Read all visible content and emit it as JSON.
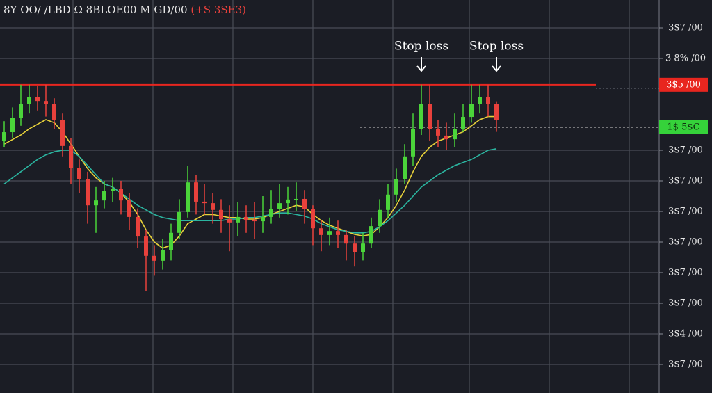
{
  "chart_data": {
    "type": "candlestick",
    "title": "8Y OO/ /LBD Ω 8BLOE00 M GD/00",
    "title_change": "(+S 3SE3)",
    "title_change_color": "#e8413c",
    "up_color": "#4bd43a",
    "down_color": "#e8413c",
    "open": [
      8.3,
      8.59,
      9.05,
      9.5,
      9.73,
      9.61,
      9.5,
      9.0,
      8.14,
      7.41,
      7.05,
      6.2,
      6.36,
      6.66,
      6.73,
      6.36,
      5.82,
      5.18,
      4.55,
      4.39,
      4.73,
      5.3,
      5.98,
      6.95,
      6.32,
      6.27,
      6.05,
      5.75,
      5.64,
      5.82,
      5.73,
      5.68,
      5.82,
      6.09,
      6.27,
      6.39,
      6.41,
      6.09,
      5.45,
      5.23,
      5.36,
      5.23,
      4.95,
      4.68,
      4.95,
      5.52,
      6.05,
      6.55,
      7.05,
      7.8,
      8.7,
      9.5,
      8.7,
      8.48,
      8.36,
      8.7,
      9.09,
      9.5,
      9.73,
      9.5
    ],
    "close": [
      8.59,
      9.05,
      9.5,
      9.73,
      9.61,
      9.5,
      9.0,
      8.14,
      7.41,
      7.05,
      6.2,
      6.36,
      6.66,
      6.73,
      6.36,
      5.82,
      5.18,
      4.55,
      4.39,
      4.73,
      5.3,
      5.98,
      6.95,
      6.32,
      6.27,
      6.05,
      5.75,
      5.64,
      5.82,
      5.73,
      5.68,
      5.82,
      6.09,
      6.27,
      6.39,
      6.41,
      6.09,
      5.45,
      5.23,
      5.36,
      5.23,
      4.95,
      4.68,
      4.95,
      5.52,
      6.05,
      6.55,
      7.05,
      7.8,
      8.7,
      9.5,
      8.7,
      8.48,
      8.36,
      8.7,
      9.09,
      9.5,
      9.73,
      9.5,
      9.0
    ],
    "high": [
      8.95,
      9.4,
      10.14,
      10.14,
      10.1,
      10.14,
      9.7,
      9.2,
      8.4,
      7.7,
      7.3,
      6.8,
      7.0,
      7.1,
      7.0,
      6.6,
      6.1,
      5.4,
      4.9,
      5.1,
      5.6,
      6.4,
      7.5,
      7.2,
      6.9,
      6.6,
      6.4,
      6.2,
      6.3,
      6.2,
      6.3,
      6.5,
      6.7,
      6.9,
      6.8,
      6.95,
      6.7,
      6.2,
      5.7,
      5.8,
      5.7,
      5.4,
      5.2,
      5.3,
      5.8,
      6.4,
      6.9,
      7.4,
      8.2,
      9.2,
      10.14,
      10.14,
      9.0,
      8.9,
      9.2,
      9.5,
      10.14,
      10.14,
      10.14,
      9.6
    ],
    "low": [
      8.1,
      8.4,
      8.8,
      9.2,
      9.3,
      9.1,
      8.7,
      7.8,
      6.9,
      6.6,
      5.6,
      5.3,
      6.1,
      6.3,
      5.9,
      5.4,
      4.8,
      3.4,
      3.9,
      4.1,
      4.4,
      5.1,
      5.8,
      5.9,
      5.9,
      5.6,
      5.3,
      4.7,
      5.2,
      5.3,
      5.1,
      5.3,
      5.6,
      5.8,
      5.9,
      6.0,
      5.6,
      4.9,
      4.7,
      4.9,
      4.8,
      4.4,
      4.2,
      4.4,
      4.8,
      5.3,
      5.8,
      6.3,
      6.9,
      7.5,
      8.5,
      8.3,
      8.1,
      8.0,
      8.1,
      8.6,
      8.9,
      9.2,
      9.1,
      8.6
    ],
    "moving_averages": [
      {
        "color": "#e8d23a",
        "values": [
          8.2,
          8.35,
          8.5,
          8.7,
          8.85,
          9.0,
          8.9,
          8.6,
          8.2,
          7.8,
          7.4,
          7.1,
          6.9,
          6.8,
          6.6,
          6.3,
          5.9,
          5.4,
          5.0,
          4.8,
          4.9,
          5.2,
          5.6,
          5.75,
          5.9,
          5.9,
          5.85,
          5.8,
          5.8,
          5.75,
          5.75,
          5.8,
          5.9,
          6.0,
          6.1,
          6.2,
          6.15,
          5.9,
          5.7,
          5.55,
          5.45,
          5.35,
          5.25,
          5.2,
          5.25,
          5.5,
          5.8,
          6.2,
          6.7,
          7.3,
          7.8,
          8.1,
          8.3,
          8.4,
          8.5,
          8.6,
          8.8,
          9.0,
          9.1,
          9.1
        ]
      },
      {
        "color": "#2bb5a0",
        "values": [
          6.9,
          7.1,
          7.3,
          7.5,
          7.7,
          7.85,
          7.95,
          8.0,
          8.0,
          7.8,
          7.5,
          7.2,
          6.9,
          6.8,
          6.6,
          6.4,
          6.2,
          6.05,
          5.9,
          5.8,
          5.75,
          5.7,
          5.7,
          5.7,
          5.7,
          5.7,
          5.7,
          5.75,
          5.75,
          5.8,
          5.8,
          5.85,
          5.9,
          5.95,
          5.95,
          5.9,
          5.85,
          5.75,
          5.6,
          5.5,
          5.4,
          5.35,
          5.3,
          5.3,
          5.35,
          5.5,
          5.7,
          5.95,
          6.2,
          6.5,
          6.8,
          7.0,
          7.2,
          7.35,
          7.5,
          7.6,
          7.7,
          7.85,
          8.0,
          8.05
        ]
      }
    ],
    "ylim": [
      0.1,
      12.9
    ],
    "yticks": [
      {
        "value": 1,
        "label": "3$7 /00"
      },
      {
        "value": 2,
        "label": "3$4 /00"
      },
      {
        "value": 3,
        "label": "3$7 /00"
      },
      {
        "value": 4,
        "label": "3$7 /00"
      },
      {
        "value": 5,
        "label": "3$7 /00"
      },
      {
        "value": 6,
        "label": "3$7 /00"
      },
      {
        "value": 7,
        "label": "3$7 /00"
      },
      {
        "value": 8,
        "label": "3$7 /00"
      },
      {
        "value": 11,
        "label": "3 8% /00"
      },
      {
        "value": 12,
        "label": "3$7 /00"
      }
    ],
    "grid": true,
    "price_lines": [
      {
        "value": 10.14,
        "label": "3$5 /00",
        "color": "#e8261f",
        "style": "solid"
      },
      {
        "value": 8.75,
        "label": "1$ 5$C",
        "color": "#35d23a",
        "style": "dashed"
      }
    ],
    "annotations": [
      {
        "text": "Stop loss",
        "index": 50
      },
      {
        "text": "Stop loss",
        "index": 59
      }
    ]
  }
}
